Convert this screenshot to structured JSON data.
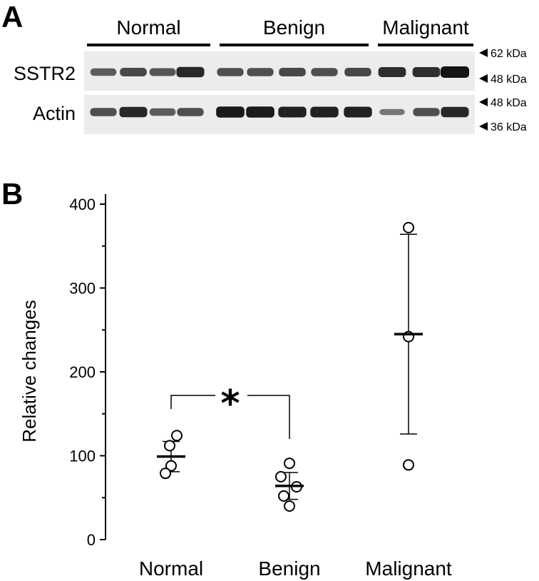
{
  "panel_a": {
    "letter": "A",
    "groups": [
      {
        "label": "Normal",
        "lanes": 4
      },
      {
        "label": "Benign",
        "lanes": 5
      },
      {
        "label": "Malignant",
        "lanes": 3
      }
    ],
    "rows": [
      {
        "label": "SSTR2",
        "intensity": [
          0.45,
          0.6,
          0.5,
          0.85,
          0.55,
          0.55,
          0.6,
          0.55,
          0.6,
          0.8,
          0.8,
          1.0
        ]
      },
      {
        "label": "Actin",
        "intensity": [
          0.55,
          0.85,
          0.45,
          0.55,
          0.95,
          0.95,
          0.9,
          0.9,
          0.9,
          0.25,
          0.55,
          0.85
        ]
      }
    ],
    "markers": [
      "62 kDa",
      "48 kDa",
      "48 kDa",
      "36 kDa"
    ]
  },
  "panel_b": {
    "letter": "B",
    "significance": "*"
  },
  "chart_data": {
    "type": "scatter",
    "ylabel": "Relative changes",
    "ylim": [
      0,
      400
    ],
    "yticks": [
      0,
      100,
      200,
      300,
      400
    ],
    "categories": [
      "Normal",
      "Benign",
      "Malignant"
    ],
    "groups": [
      {
        "name": "Normal",
        "points": [
          124,
          112,
          88,
          79
        ],
        "mean": 99,
        "error": [
          81,
          117
        ]
      },
      {
        "name": "Benign",
        "points": [
          91,
          75,
          63,
          52,
          40
        ],
        "mean": 64,
        "error": [
          48,
          80
        ]
      },
      {
        "name": "Malignant",
        "points": [
          372,
          242,
          89
        ],
        "mean": 245,
        "error": [
          126,
          364
        ]
      }
    ],
    "comparison": {
      "between": [
        "Normal",
        "Benign"
      ],
      "label": "*"
    }
  }
}
